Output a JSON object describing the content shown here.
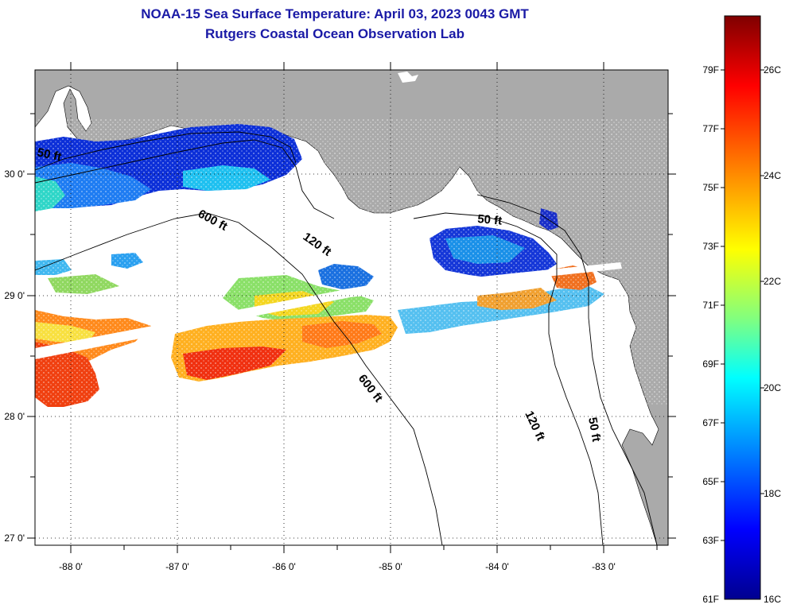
{
  "title": "NOAA-15 Sea Surface Temperature:  April 03, 2023 0043 GMT",
  "subtitle": "Rutgers Coastal Ocean Observation Lab",
  "map": {
    "longitude_labels": [
      "-88 0'",
      "-87 0'",
      "-86 0'",
      "-85 0'",
      "-84 0'",
      "-83 0'"
    ],
    "latitude_labels": [
      "30 0'",
      "29 0'",
      "28 0'",
      "27 0'"
    ],
    "land_color": "#aaaaaa",
    "ocean_nodata_color": "#ffffff",
    "contour_labels": [
      "50 ft",
      "600 ft",
      "120 ft",
      "50 ft",
      "600 ft",
      "120 ft",
      "50 ft"
    ]
  },
  "colorbar": {
    "fahrenheit_labels": [
      "79F",
      "77F",
      "75F",
      "73F",
      "71F",
      "69F",
      "67F",
      "65F",
      "63F",
      "61F"
    ],
    "celsius_labels": [
      "26C",
      "24C",
      "22C",
      "20C",
      "18C",
      "16C"
    ],
    "colors": [
      "#7f0000",
      "#ff0000",
      "#ff8000",
      "#ffff00",
      "#80ff80",
      "#00ffff",
      "#0080ff",
      "#0000ff",
      "#00008f"
    ]
  }
}
